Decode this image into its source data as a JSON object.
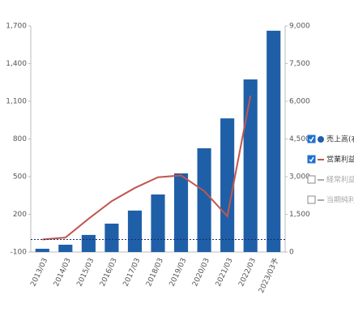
{
  "chart_data": {
    "type": "bar_line",
    "categories": [
      "2013/03",
      "2014/03",
      "2015/03",
      "2016/03",
      "2017/03",
      "2018/03",
      "2019/03",
      "2020/03",
      "2021/03",
      "2022/03",
      "2023/03予"
    ],
    "series": [
      {
        "name": "売上高(右軸)",
        "type": "bar",
        "axis": "y2",
        "color": "#1f5fa8",
        "visible": true,
        "values": [
          130,
          290,
          680,
          1130,
          1650,
          2290,
          3130,
          4130,
          5320,
          6870,
          8810
        ]
      },
      {
        "name": "営業利益",
        "type": "line",
        "axis": "y",
        "color": "#c0574f",
        "visible": true,
        "values": [
          0,
          15,
          165,
          305,
          410,
          495,
          510,
          385,
          185,
          1145,
          null
        ]
      },
      {
        "name": "経常利益",
        "type": "line",
        "axis": "y",
        "color": "#aaaaaa",
        "visible": false,
        "values": [
          null,
          null,
          null,
          null,
          null,
          null,
          null,
          null,
          null,
          null,
          null
        ]
      },
      {
        "name": "当期純利益",
        "type": "line",
        "axis": "y",
        "color": "#aaaaaa",
        "visible": false,
        "values": [
          null,
          null,
          null,
          null,
          null,
          null,
          null,
          null,
          null,
          null,
          null
        ]
      }
    ],
    "ylim": [
      -100,
      1700
    ],
    "yticks": [
      -100,
      200,
      500,
      800,
      {
        "value": 1100,
        "label": "1,100"
      },
      {
        "value": 1400,
        "label": "1,400"
      },
      {
        "value": 1700,
        "label": "1,700"
      }
    ],
    "y2lim": [
      0,
      9000
    ],
    "y2ticks": [
      0,
      {
        "value": 1500,
        "label": "1,500"
      },
      {
        "value": 3000,
        "label": "3,000"
      },
      {
        "value": 4500,
        "label": "4,500"
      },
      {
        "value": 6000,
        "label": "6,000"
      },
      {
        "value": 7500,
        "label": "7,500"
      },
      {
        "value": 9000,
        "label": "9,000"
      }
    ],
    "zero_line": true
  }
}
